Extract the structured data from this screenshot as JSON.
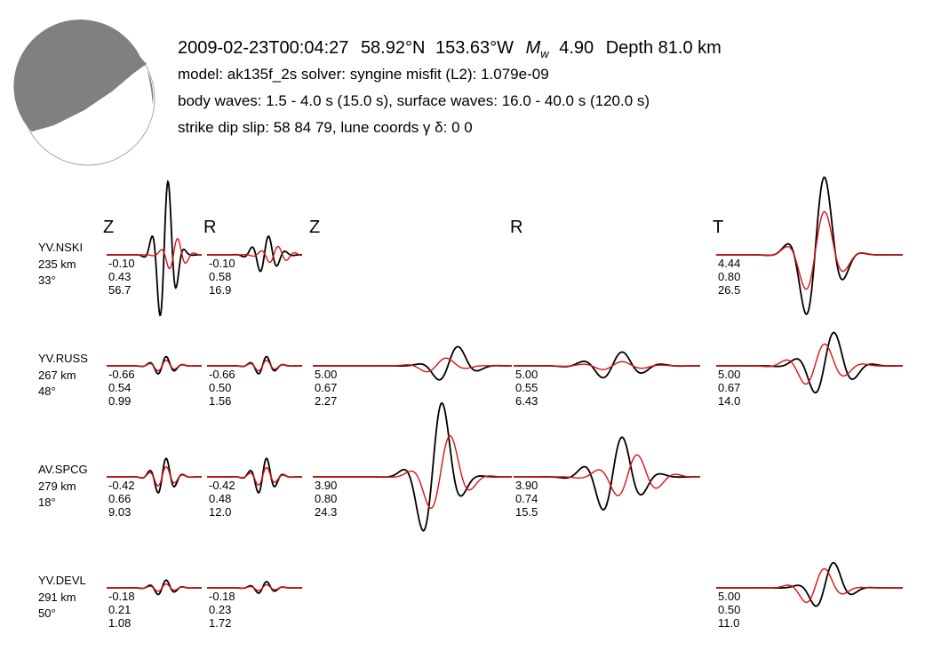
{
  "header": {
    "datetime": "2009-02-23T00:04:27",
    "lat": "58.92°N",
    "lon": "153.63°W",
    "mw_symbol": "M",
    "mw_subscript": "w",
    "mw_value": "4.90",
    "depth": "Depth 81.0 km",
    "line2": "model: ak135f_2s   solver: syngine   misfit (L2): 1.079e-09",
    "line3": "body waves:  1.5 - 4.0 s (15.0 s),  surface waves: 16.0 - 40.0 s (120.0 s)",
    "line4": "strike  dip  slip:  58  84  79,   lune coords γ  δ:  0  0"
  },
  "colors": {
    "observed": "#000000",
    "synthetic": "#dd1111",
    "beachball_fill": "#808080",
    "beachball_outline": "#aaaaaa"
  },
  "chart_data": {
    "type": "line",
    "columns": [
      "Z",
      "R",
      "Z",
      "R",
      "T"
    ],
    "stations": [
      {
        "name": "YV.NSKI",
        "distance": "235 km",
        "azimuth": "33°",
        "panels": [
          {
            "col": 0,
            "labels": [
              "-0.10",
              "0.43",
              "56.7"
            ],
            "amp": 2.4,
            "syn_ratio": 0.22,
            "period": 1.0,
            "center": 0.62,
            "width": 0.22,
            "lag": 0.1
          },
          {
            "col": 1,
            "labels": [
              "-0.10",
              "0.58",
              "16.9"
            ],
            "amp": 0.6,
            "syn_ratio": 0.45,
            "period": 1.0,
            "center": 0.62,
            "width": 0.28,
            "lag": 0.1
          },
          null,
          null,
          {
            "col": 4,
            "labels": [
              "4.44",
              "0.80",
              "26.5"
            ],
            "amp": 2.6,
            "syn_ratio": 0.55,
            "period": 1.0,
            "center": 0.55,
            "width": 0.22,
            "lag": 0.0
          }
        ]
      },
      {
        "name": "YV.RUSS",
        "distance": "267 km",
        "azimuth": "48°",
        "panels": [
          {
            "col": 0,
            "labels": [
              "-0.66",
              "0.54",
              "0.99"
            ],
            "amp": 0.3,
            "syn_ratio": 0.6,
            "period": 1.0,
            "center": 0.6,
            "width": 0.25,
            "lag": 0.0
          },
          {
            "col": 1,
            "labels": [
              "-0.66",
              "0.50",
              "1.56"
            ],
            "amp": 0.3,
            "syn_ratio": 0.6,
            "period": 1.0,
            "center": 0.6,
            "width": 0.25,
            "lag": 0.0
          },
          {
            "col": 2,
            "labels": [
              "5.00",
              "0.67",
              "2.27"
            ],
            "amp": 0.65,
            "syn_ratio": 0.4,
            "period": 1.0,
            "center": 0.7,
            "width": 0.2,
            "lag": -0.06
          },
          {
            "col": 3,
            "labels": [
              "5.00",
              "0.55",
              "6.43"
            ],
            "amp": 0.45,
            "syn_ratio": 0.3,
            "period": 1.0,
            "center": 0.55,
            "width": 0.3,
            "lag": 0.0
          },
          {
            "col": 4,
            "labels": [
              "5.00",
              "0.67",
              "14.0"
            ],
            "amp": 1.1,
            "syn_ratio": 0.65,
            "period": 1.0,
            "center": 0.6,
            "width": 0.25,
            "lag": -0.05
          }
        ]
      },
      {
        "name": "AV.SPCG",
        "distance": "279 km",
        "azimuth": "18°",
        "panels": [
          {
            "col": 0,
            "labels": [
              "-0.42",
              "0.66",
              "9.03"
            ],
            "amp": 0.6,
            "syn_ratio": 0.55,
            "period": 1.0,
            "center": 0.6,
            "width": 0.25,
            "lag": 0.0
          },
          {
            "col": 1,
            "labels": [
              "-0.42",
              "0.48",
              "12.0"
            ],
            "amp": 0.6,
            "syn_ratio": 0.5,
            "period": 1.0,
            "center": 0.6,
            "width": 0.25,
            "lag": 0.0
          },
          {
            "col": 2,
            "labels": [
              "3.90",
              "0.80",
              "24.3"
            ],
            "amp": 2.5,
            "syn_ratio": 0.55,
            "period": 1.0,
            "center": 0.62,
            "width": 0.2,
            "lag": 0.04
          },
          {
            "col": 3,
            "labels": [
              "3.90",
              "0.74",
              "15.5"
            ],
            "amp": 1.3,
            "syn_ratio": 0.55,
            "period": 1.0,
            "center": 0.55,
            "width": 0.27,
            "lag": 0.08
          },
          null
        ]
      },
      {
        "name": "YV.DEVL",
        "distance": "291 km",
        "azimuth": "50°",
        "panels": [
          {
            "col": 0,
            "labels": [
              "-0.18",
              "0.21",
              "1.08"
            ],
            "amp": 0.25,
            "syn_ratio": 0.5,
            "period": 1.0,
            "center": 0.6,
            "width": 0.25,
            "lag": 0.0
          },
          {
            "col": 1,
            "labels": [
              "-0.18",
              "0.23",
              "1.72"
            ],
            "amp": 0.2,
            "syn_ratio": 0.5,
            "period": 1.0,
            "center": 0.6,
            "width": 0.25,
            "lag": 0.0
          },
          null,
          null,
          {
            "col": 4,
            "labels": [
              "5.00",
              "0.50",
              "11.0"
            ],
            "amp": 0.85,
            "syn_ratio": 0.75,
            "period": 1.0,
            "center": 0.6,
            "width": 0.2,
            "lag": -0.05
          }
        ]
      }
    ]
  }
}
